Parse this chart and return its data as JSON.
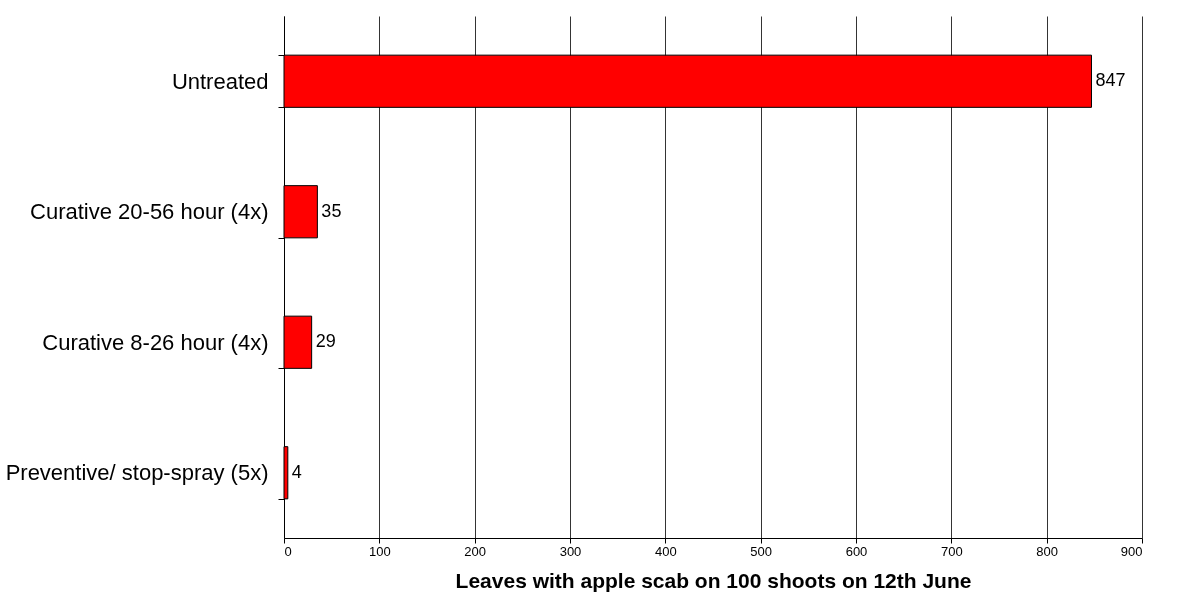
{
  "chart_data": {
    "type": "bar",
    "orientation": "horizontal",
    "categories": [
      "Untreated",
      "Curative 20-56 hour (4x)",
      "Curative 8-26 hour (4x)",
      "Preventive/ stop-spray (5x)"
    ],
    "values": [
      847,
      35,
      29,
      4
    ],
    "color": "#ff0000",
    "xlabel": "Leaves with apple scab on 100 shoots on 12th  June",
    "xlim": [
      0,
      900
    ],
    "xticks": [
      0,
      100,
      200,
      300,
      400,
      500,
      600,
      700,
      800,
      900
    ],
    "grid": "x",
    "data_labels": true
  }
}
